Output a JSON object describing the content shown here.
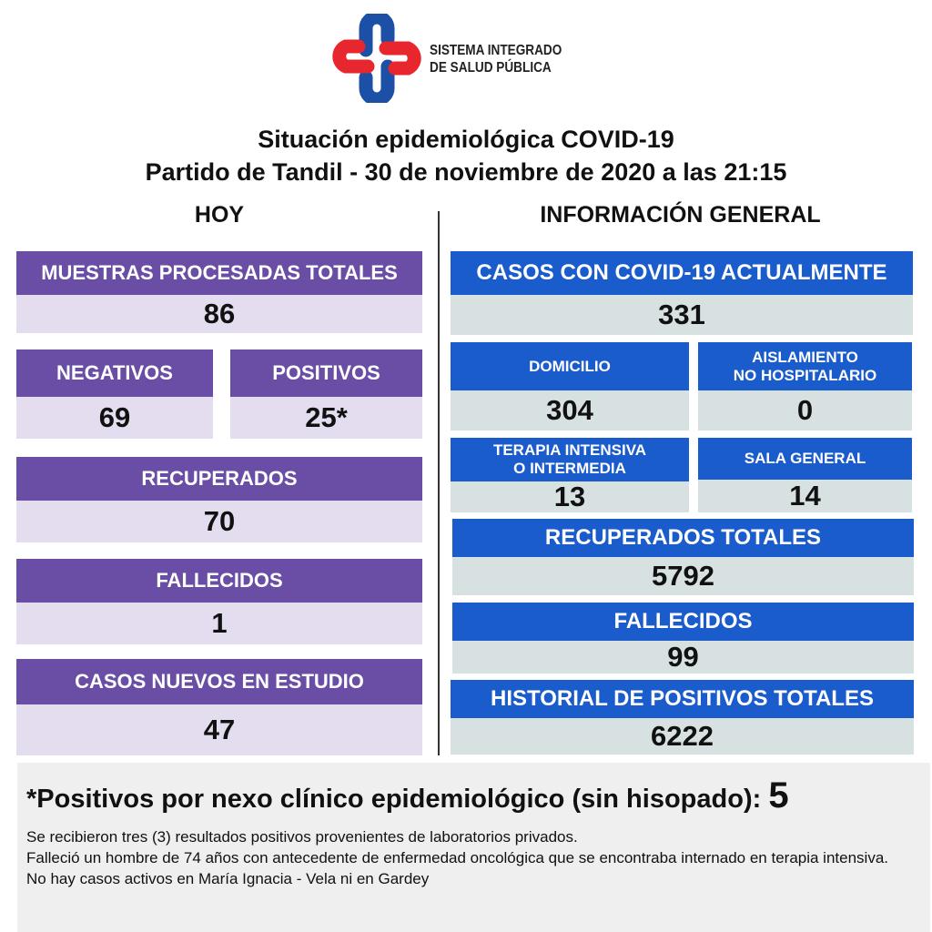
{
  "logo": {
    "line1": "SISTEMA INTEGRADO",
    "line2": "DE SALUD PÚBLICA",
    "colors": {
      "red": "#e8262e",
      "blue": "#1c4fa6"
    }
  },
  "title": {
    "line1": "Situación epidemiológica COVID-19",
    "line2": "Partido de Tandil - 30 de noviembre de 2020 a las 21:15"
  },
  "hoy": {
    "heading": "HOY",
    "muestras": {
      "label": "MUESTRAS PROCESADAS TOTALES",
      "value": "86"
    },
    "negativos": {
      "label": "NEGATIVOS",
      "value": "69"
    },
    "positivos": {
      "label": "POSITIVOS",
      "value": "25*"
    },
    "recuperados": {
      "label": "RECUPERADOS",
      "value": "70"
    },
    "fallecidos": {
      "label": "FALLECIDOS",
      "value": "1"
    },
    "estudio": {
      "label": "CASOS NUEVOS EN ESTUDIO",
      "value": "47"
    }
  },
  "general": {
    "heading": "INFORMACIÓN GENERAL",
    "actuales": {
      "label": "CASOS CON COVID-19 ACTUALMENTE",
      "value": "331"
    },
    "domicilio": {
      "label": "DOMICILIO",
      "value": "304"
    },
    "aislamiento": {
      "label1": "AISLAMIENTO",
      "label2": "NO HOSPITALARIO",
      "value": "0"
    },
    "terapia": {
      "label1": "TERAPIA INTENSIVA",
      "label2": "O INTERMEDIA",
      "value": "13"
    },
    "sala": {
      "label": "SALA GENERAL",
      "value": "14"
    },
    "recuperados": {
      "label": "RECUPERADOS TOTALES",
      "value": "5792"
    },
    "fallecidos": {
      "label": "FALLECIDOS",
      "value": "99"
    },
    "historial": {
      "label": "HISTORIAL DE POSITIVOS TOTALES",
      "value": "6222"
    }
  },
  "note": {
    "headline": "*Positivos por nexo clínico epidemiológico (sin hisopado): ",
    "headline_value": "5",
    "lines": [
      "Se recibieron tres (3) resultados positivos provenientes de laboratorios privados.",
      "Falleció un hombre de 74 años con antecedente de enfermedad oncológica que se encontraba internado en terapia intensiva.",
      "No hay casos activos en María Ignacia - Vela ni en Gardey"
    ]
  },
  "colors": {
    "purple": "#6a4ea6",
    "purple_light": "#e3ddef",
    "blue": "#1a5ccb",
    "blue_light": "#d7e1e1"
  }
}
